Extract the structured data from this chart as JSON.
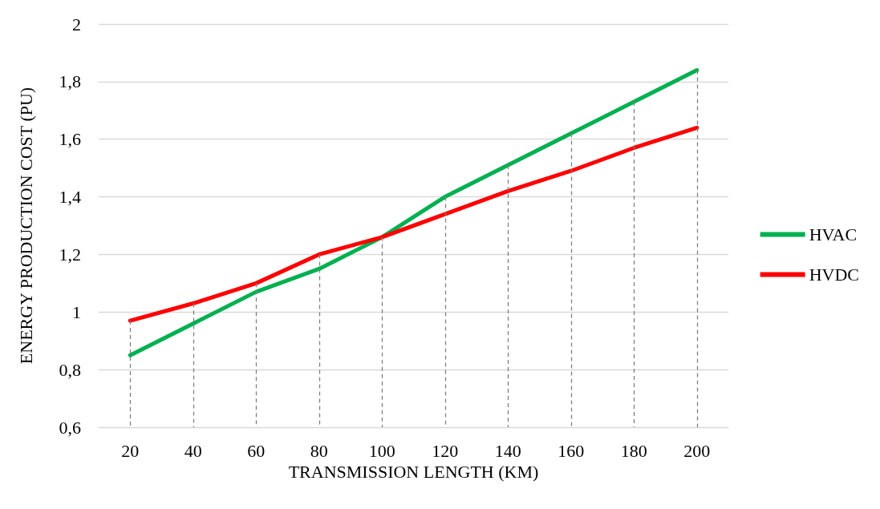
{
  "chart_data": {
    "type": "line",
    "xlabel": "TRANSMISSION LENGTH (KM)",
    "ylabel": "ENERGY PRODUCTION COST (PU)",
    "categories": [
      "20",
      "40",
      "60",
      "80",
      "100",
      "120",
      "140",
      "160",
      "180",
      "200"
    ],
    "series": [
      {
        "name": "HVAC",
        "color": "#00b050",
        "values": [
          0.85,
          0.96,
          1.07,
          1.15,
          1.26,
          1.4,
          1.51,
          1.62,
          1.73,
          1.84
        ]
      },
      {
        "name": "HVDC",
        "color": "#ff0000",
        "values": [
          0.97,
          1.03,
          1.1,
          1.2,
          1.26,
          1.34,
          1.42,
          1.49,
          1.57,
          1.64
        ]
      }
    ],
    "ylim": [
      0.6,
      2
    ],
    "yticks": [
      {
        "value": 0.6,
        "label": "0,6"
      },
      {
        "value": 0.8,
        "label": "0,8"
      },
      1,
      {
        "value": 1.2,
        "label": "1,2"
      },
      {
        "value": 1.4,
        "label": "1,4"
      },
      {
        "value": 1.6,
        "label": "1,6"
      },
      {
        "value": 1.8,
        "label": "1,8"
      },
      2
    ],
    "ref_lines": [
      {
        "axis": "x",
        "value": "20",
        "color": "#808080",
        "line_style": "dashed"
      },
      {
        "axis": "x",
        "value": "40",
        "color": "#808080",
        "line_style": "dashed"
      },
      {
        "axis": "x",
        "value": "60",
        "color": "#808080",
        "line_style": "dashed"
      },
      {
        "axis": "x",
        "value": "80",
        "color": "#808080",
        "line_style": "dashed"
      },
      {
        "axis": "x",
        "value": "100",
        "color": "#808080",
        "line_style": "dashed"
      },
      {
        "axis": "x",
        "value": "120",
        "color": "#808080",
        "line_style": "dashed"
      },
      {
        "axis": "x",
        "value": "140",
        "color": "#808080",
        "line_style": "dashed"
      },
      {
        "axis": "x",
        "value": "160",
        "color": "#808080",
        "line_style": "dashed"
      },
      {
        "axis": "x",
        "value": "180",
        "color": "#808080",
        "line_style": "dashed"
      },
      {
        "axis": "x",
        "value": "200",
        "color": "#808080",
        "line_style": "dashed"
      }
    ],
    "grid": "y",
    "legend": "right",
    "marker": "none",
    "line_style": "solid"
  }
}
